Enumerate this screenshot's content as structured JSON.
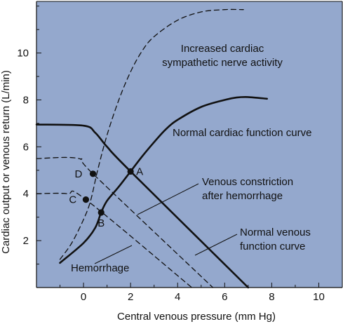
{
  "colors": {
    "plot_background": "#94a8cd",
    "ink": "#111111"
  },
  "chart_data": {
    "type": "line",
    "title": "",
    "xlabel": "Central venous pressure (mm Hg)",
    "ylabel": "Cardiac output or venous return (L/min)",
    "xlim": [
      -2,
      11
    ],
    "ylim": [
      0,
      12.2
    ],
    "xticks": [
      0,
      2,
      4,
      6,
      8,
      10
    ],
    "yticks": [
      2,
      4,
      6,
      8,
      10
    ],
    "grid": false,
    "series": [
      {
        "key": "normal_cardiac",
        "label": "Normal cardiac function curve",
        "style": "solid-thick",
        "points": [
          [
            -1,
            1.05
          ],
          [
            0,
            1.9
          ],
          [
            0.5,
            2.55
          ],
          [
            0.75,
            3.2
          ],
          [
            1,
            3.7
          ],
          [
            1.5,
            4.3
          ],
          [
            2,
            4.95
          ],
          [
            2.5,
            5.6
          ],
          [
            3,
            6.2
          ],
          [
            3.5,
            6.75
          ],
          [
            4,
            7.15
          ],
          [
            5,
            7.7
          ],
          [
            6,
            8.0
          ],
          [
            6.5,
            8.1
          ],
          [
            7,
            8.12
          ],
          [
            7.8,
            8.05
          ]
        ]
      },
      {
        "key": "increased_sympathetic",
        "label": "Increased cardiac sympathetic nerve activity",
        "style": "dashed",
        "points": [
          [
            -1,
            1.2
          ],
          [
            -0.5,
            1.9
          ],
          [
            0,
            2.9
          ],
          [
            0.3,
            3.7
          ],
          [
            0.6,
            5.0
          ],
          [
            1,
            6.5
          ],
          [
            1.5,
            8.0
          ],
          [
            2,
            9.2
          ],
          [
            2.5,
            10.1
          ],
          [
            3,
            10.7
          ],
          [
            4,
            11.4
          ],
          [
            5,
            11.75
          ],
          [
            6,
            11.85
          ],
          [
            6.8,
            11.85
          ]
        ]
      },
      {
        "key": "normal_venous",
        "label": "Normal venous function curve",
        "style": "solid-thick",
        "points": [
          [
            -2,
            6.95
          ],
          [
            0,
            6.9
          ],
          [
            0.5,
            6.6
          ],
          [
            1,
            6.0
          ],
          [
            2,
            4.95
          ],
          [
            7,
            0
          ]
        ]
      },
      {
        "key": "venous_constriction",
        "label": "Venous constriction after hemorrhage",
        "style": "dashed",
        "points": [
          [
            -2,
            5.5
          ],
          [
            -0.2,
            5.5
          ],
          [
            0.4,
            4.85
          ],
          [
            5.5,
            0
          ]
        ]
      },
      {
        "key": "hemorrhage",
        "label": "Hemorrhage",
        "style": "dashed",
        "points": [
          [
            -2,
            4.0
          ],
          [
            -0.7,
            4.0
          ],
          [
            0.1,
            3.75
          ],
          [
            4.6,
            0
          ]
        ]
      }
    ],
    "points": [
      {
        "label": "A",
        "x": 2.0,
        "y": 4.95
      },
      {
        "label": "B",
        "x": 0.75,
        "y": 3.2
      },
      {
        "label": "C",
        "x": 0.1,
        "y": 3.75
      },
      {
        "label": "D",
        "x": 0.4,
        "y": 4.85
      }
    ],
    "annotations": [
      {
        "key": "sympathetic",
        "lines": [
          "Increased cardiac",
          "sympathetic nerve activity"
        ]
      },
      {
        "key": "cardiac",
        "lines": [
          "Normal cardiac function curve"
        ]
      },
      {
        "key": "constriction",
        "lines": [
          "Venous constriction",
          "after hemorrhage"
        ]
      },
      {
        "key": "venous",
        "lines": [
          "Normal venous",
          "function curve"
        ]
      },
      {
        "key": "hemorrhage",
        "lines": [
          "Hemorrhage"
        ]
      }
    ]
  }
}
